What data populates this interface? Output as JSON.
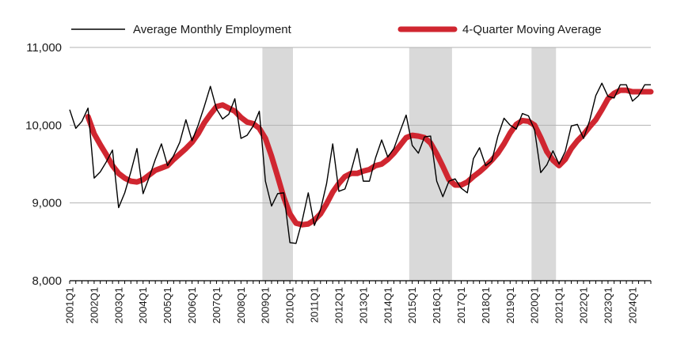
{
  "chart_data": {
    "type": "line",
    "title": "",
    "xlabel": "",
    "ylabel": "",
    "ylim": [
      8000,
      11000
    ],
    "yticks": [
      8000,
      9000,
      10000,
      11000
    ],
    "ytick_labels": [
      "8,000",
      "9,000",
      "10,000",
      "11,000"
    ],
    "grid": "horizontal",
    "legend": "top",
    "x_tick_labels": [
      "2001Q1",
      "2002Q1",
      "2003Q1",
      "2004Q1",
      "2005Q1",
      "2006Q1",
      "2007Q1",
      "2008Q1",
      "2009Q1",
      "2010Q1",
      "2011Q1",
      "2012Q1",
      "2013Q1",
      "2014Q1",
      "2015Q1",
      "2016Q1",
      "2017Q1",
      "2018Q1",
      "2019Q1",
      "2020Q1",
      "2021Q1",
      "2022Q1",
      "2023Q1",
      "2024Q1"
    ],
    "x": [
      "2001Q1",
      "2001Q2",
      "2001Q3",
      "2001Q4",
      "2002Q1",
      "2002Q2",
      "2002Q3",
      "2002Q4",
      "2003Q1",
      "2003Q2",
      "2003Q3",
      "2003Q4",
      "2004Q1",
      "2004Q2",
      "2004Q3",
      "2004Q4",
      "2005Q1",
      "2005Q2",
      "2005Q3",
      "2005Q4",
      "2006Q1",
      "2006Q2",
      "2006Q3",
      "2006Q4",
      "2007Q1",
      "2007Q2",
      "2007Q3",
      "2007Q4",
      "2008Q1",
      "2008Q2",
      "2008Q3",
      "2008Q4",
      "2009Q1",
      "2009Q2",
      "2009Q3",
      "2009Q4",
      "2010Q1",
      "2010Q2",
      "2010Q3",
      "2010Q4",
      "2011Q1",
      "2011Q2",
      "2011Q3",
      "2011Q4",
      "2012Q1",
      "2012Q2",
      "2012Q3",
      "2012Q4",
      "2013Q1",
      "2013Q2",
      "2013Q3",
      "2013Q4",
      "2014Q1",
      "2014Q2",
      "2014Q3",
      "2014Q4",
      "2015Q1",
      "2015Q2",
      "2015Q3",
      "2015Q4",
      "2016Q1",
      "2016Q2",
      "2016Q3",
      "2016Q4",
      "2017Q1",
      "2017Q2",
      "2017Q3",
      "2017Q4",
      "2018Q1",
      "2018Q2",
      "2018Q3",
      "2018Q4",
      "2019Q1",
      "2019Q2",
      "2019Q3",
      "2019Q4",
      "2020Q1",
      "2020Q2",
      "2020Q3",
      "2020Q4",
      "2021Q1",
      "2021Q2",
      "2021Q3",
      "2021Q4",
      "2022Q1",
      "2022Q2",
      "2022Q3",
      "2022Q4",
      "2023Q1",
      "2023Q2",
      "2023Q3",
      "2023Q4",
      "2024Q1",
      "2024Q2",
      "2024Q3",
      "2024Q4"
    ],
    "series": [
      {
        "name": "Average Monthly Employment",
        "color": "#000000",
        "values": [
          10200,
          9960,
          10050,
          10220,
          9320,
          9400,
          9530,
          9680,
          8940,
          9130,
          9400,
          9700,
          9120,
          9330,
          9560,
          9760,
          9480,
          9610,
          9780,
          10070,
          9800,
          10000,
          10240,
          10500,
          10210,
          10080,
          10140,
          10340,
          9830,
          9870,
          9990,
          10180,
          9280,
          8960,
          9120,
          9130,
          8490,
          8480,
          8770,
          9130,
          8710,
          8910,
          9250,
          9760,
          9150,
          9180,
          9410,
          9700,
          9280,
          9280,
          9580,
          9810,
          9590,
          9700,
          9920,
          10130,
          9740,
          9640,
          9850,
          9860,
          9280,
          9080,
          9280,
          9310,
          9190,
          9130,
          9570,
          9710,
          9480,
          9540,
          9860,
          10090,
          10000,
          9950,
          10150,
          10120,
          9940,
          9390,
          9490,
          9670,
          9500,
          9660,
          9990,
          10010,
          9830,
          10060,
          10380,
          10540,
          10370,
          10350,
          10520,
          10520,
          10310,
          10380,
          10520,
          10520
        ]
      },
      {
        "name": "4-Quarter Moving Average",
        "color": "#d02630",
        "values": [
          null,
          null,
          null,
          10110,
          9890,
          9750,
          9620,
          9480,
          9380,
          9320,
          9280,
          9270,
          9300,
          9360,
          9420,
          9450,
          9480,
          9560,
          9630,
          9700,
          9780,
          9890,
          10030,
          10140,
          10240,
          10260,
          10220,
          10180,
          10100,
          10040,
          10020,
          9960,
          9830,
          9600,
          9340,
          9070,
          8860,
          8740,
          8720,
          8730,
          8780,
          8860,
          8990,
          9140,
          9250,
          9340,
          9380,
          9380,
          9410,
          9430,
          9480,
          9500,
          9560,
          9640,
          9740,
          9840,
          9870,
          9860,
          9840,
          9770,
          9630,
          9470,
          9300,
          9230,
          9230,
          9270,
          9340,
          9400,
          9470,
          9550,
          9640,
          9760,
          9900,
          10010,
          10060,
          10050,
          10000,
          9840,
          9660,
          9550,
          9480,
          9560,
          9700,
          9800,
          9880,
          9980,
          10070,
          10200,
          10340,
          10410,
          10450,
          10450,
          10430,
          10430,
          10430,
          10430
        ]
      }
    ],
    "shaded_ranges": [
      {
        "start": "2009Q1",
        "end": "2010Q1"
      },
      {
        "start": "2015Q1",
        "end": "2016Q3"
      },
      {
        "start": "2020Q1",
        "end": "2020Q4"
      }
    ],
    "shade_color": "#d9d9d9"
  }
}
